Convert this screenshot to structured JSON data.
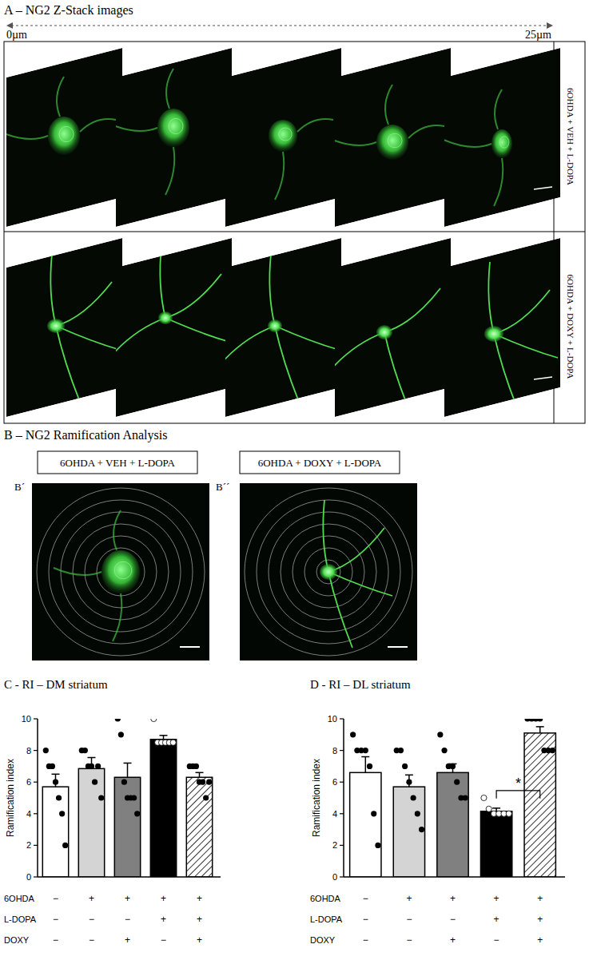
{
  "figure": {
    "panel_a_title": "A – NG2 Z-Stack images",
    "depth_start": "0µm",
    "depth_end": "25µm",
    "row_labels": [
      "6OHDA + VEH + L-DOPA",
      "6OHDA + DOXY + L-DOPA"
    ],
    "panel_b_title": "B – NG2 Ramification Analysis",
    "groups": [
      "6OHDA + VEH + L-DOPA",
      "6OHDA + DOXY + L-DOPA"
    ],
    "image_labels": [
      "B´",
      "B´´"
    ]
  },
  "chart_data": [
    {
      "type": "bar",
      "title": "C - RI – DM striatum",
      "y_label": "Ramification index",
      "categories": [
        null,
        null,
        null,
        null,
        null
      ],
      "values": [
        5.7,
        6.85,
        6.3,
        8.7,
        6.3
      ],
      "errors": [
        0.8,
        0.7,
        0.9,
        0.25,
        0.3
      ],
      "points": [
        [
          8,
          7,
          7,
          6,
          5,
          4,
          2
        ],
        [
          8,
          8,
          7,
          7,
          6,
          7,
          5
        ],
        [
          10,
          9,
          6,
          5,
          5,
          5,
          4
        ],
        [
          10,
          8.5,
          8.5,
          8.5,
          8.5,
          8.5
        ],
        [
          7,
          7,
          7,
          6,
          6,
          5,
          6
        ]
      ],
      "colors": [
        "#ffffff",
        "#d4d4d4",
        "#808080",
        "#000000",
        "hatched"
      ],
      "ylim": [
        0,
        10
      ],
      "yticks": [
        0,
        2,
        4,
        6,
        8,
        10
      ],
      "x_table": {
        "rows": [
          {
            "label": "6OHDA",
            "marks": [
              "−",
              "+",
              "+",
              "+",
              "+"
            ]
          },
          {
            "label": "L-DOPA",
            "marks": [
              "−",
              "−",
              "−",
              "+",
              "+"
            ]
          },
          {
            "label": "DOXY",
            "marks": [
              "−",
              "−",
              "+",
              "−",
              "+"
            ]
          }
        ]
      }
    },
    {
      "type": "bar",
      "title": "D - RI – DL striatum",
      "y_label": "Ramification index",
      "categories": [
        null,
        null,
        null,
        null,
        null
      ],
      "values": [
        6.6,
        5.7,
        6.6,
        4.15,
        9.1
      ],
      "errors": [
        1.0,
        0.75,
        0.55,
        0.2,
        0.4
      ],
      "points": [
        [
          9,
          8,
          8,
          8,
          7,
          4,
          2
        ],
        [
          8,
          8,
          7,
          6,
          5,
          4,
          3
        ],
        [
          9,
          8,
          7,
          7,
          6,
          5,
          5
        ],
        [
          5,
          4.3,
          4,
          4,
          4,
          4
        ],
        [
          10,
          10,
          10,
          10,
          8,
          8,
          8
        ]
      ],
      "colors": [
        "#ffffff",
        "#d4d4d4",
        "#808080",
        "#000000",
        "hatched"
      ],
      "ylim": [
        0,
        10
      ],
      "yticks": [
        0,
        2,
        4,
        6,
        8,
        10
      ],
      "x_table": {
        "rows": [
          {
            "label": "6OHDA",
            "marks": [
              "−",
              "+",
              "+",
              "+",
              "+"
            ]
          },
          {
            "label": "L-DOPA",
            "marks": [
              "−",
              "−",
              "−",
              "+",
              "+"
            ]
          },
          {
            "label": "DOXY",
            "marks": [
              "−",
              "−",
              "+",
              "−",
              "+"
            ]
          }
        ]
      },
      "annotations": [
        {
          "text": "*",
          "from": 3,
          "to": 4
        }
      ]
    }
  ]
}
